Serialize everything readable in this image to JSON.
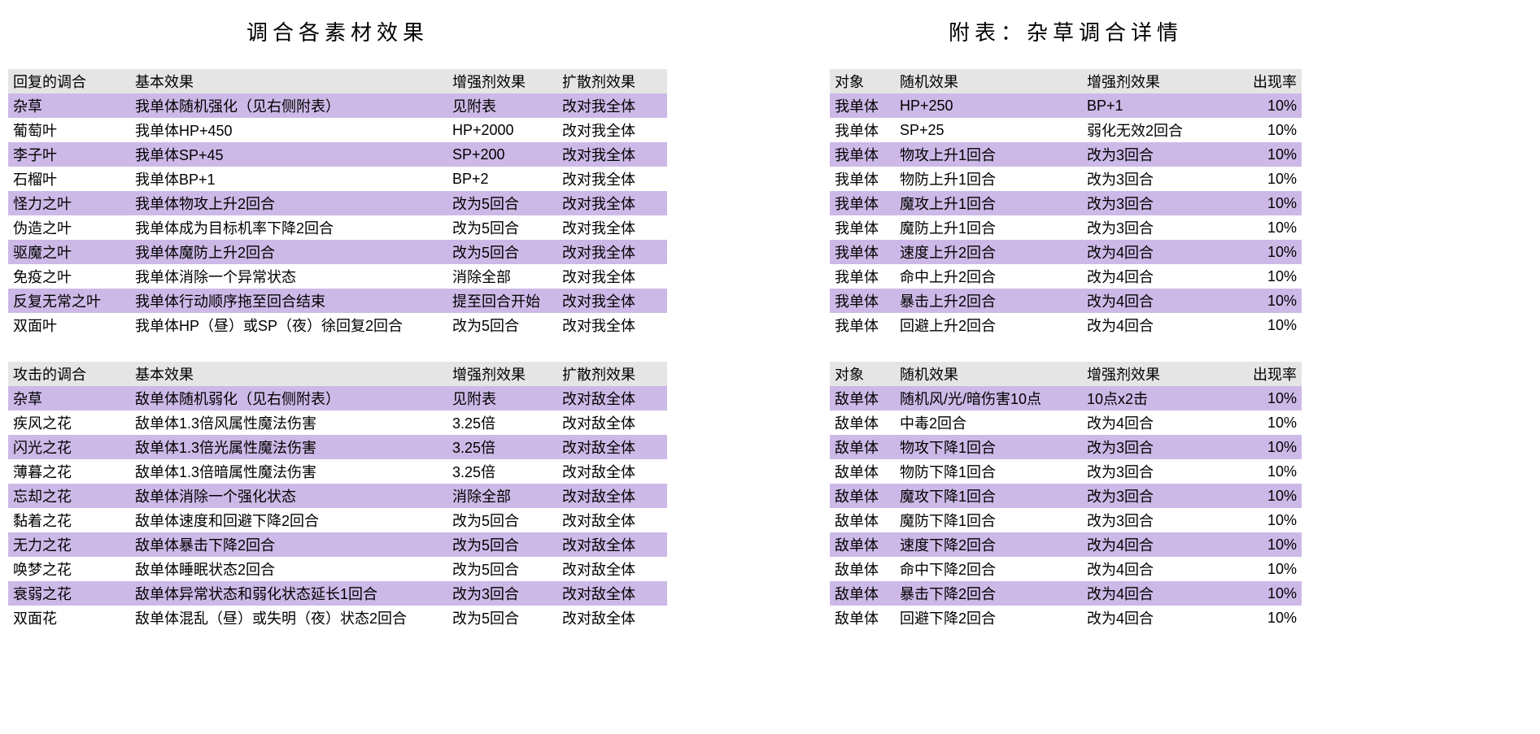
{
  "titles": {
    "left": "调合各素材效果",
    "right": "附表：杂草调合详情"
  },
  "colors": {
    "header_bg": "#e5e5e5",
    "stripe_bg": "#cdb9e7",
    "plain_bg": "#ffffff",
    "text": "#000000"
  },
  "left": {
    "headers": [
      "回复的调合",
      "基本效果",
      "增强剂效果",
      "扩散剂效果"
    ],
    "headers2": [
      "攻击的调合",
      "基本效果",
      "增强剂效果",
      "扩散剂效果"
    ],
    "recovery": [
      [
        "杂草",
        "我单体随机强化（见右侧附表）",
        "见附表",
        "改对我全体"
      ],
      [
        "葡萄叶",
        "我单体HP+450",
        "HP+2000",
        "改对我全体"
      ],
      [
        "李子叶",
        "我单体SP+45",
        "SP+200",
        "改对我全体"
      ],
      [
        "石榴叶",
        "我单体BP+1",
        "BP+2",
        "改对我全体"
      ],
      [
        "怪力之叶",
        "我单体物攻上升2回合",
        "改为5回合",
        "改对我全体"
      ],
      [
        "伪造之叶",
        "我单体成为目标机率下降2回合",
        "改为5回合",
        "改对我全体"
      ],
      [
        "驱魔之叶",
        "我单体魔防上升2回合",
        "改为5回合",
        "改对我全体"
      ],
      [
        "免疫之叶",
        "我单体消除一个异常状态",
        "消除全部",
        "改对我全体"
      ],
      [
        "反复无常之叶",
        "我单体行动顺序拖至回合结束",
        "提至回合开始",
        "改对我全体"
      ],
      [
        "双面叶",
        "我单体HP（昼）或SP（夜）徐回复2回合",
        "改为5回合",
        "改对我全体"
      ]
    ],
    "attack": [
      [
        "杂草",
        "敌单体随机弱化（见右侧附表）",
        "见附表",
        "改对敌全体"
      ],
      [
        "疾风之花",
        "敌单体1.3倍风属性魔法伤害",
        "3.25倍",
        "改对敌全体"
      ],
      [
        "闪光之花",
        "敌单体1.3倍光属性魔法伤害",
        "3.25倍",
        "改对敌全体"
      ],
      [
        "薄暮之花",
        "敌单体1.3倍暗属性魔法伤害",
        "3.25倍",
        "改对敌全体"
      ],
      [
        "忘却之花",
        "敌单体消除一个强化状态",
        "消除全部",
        "改对敌全体"
      ],
      [
        "黏着之花",
        "敌单体速度和回避下降2回合",
        "改为5回合",
        "改对敌全体"
      ],
      [
        "无力之花",
        "敌单体暴击下降2回合",
        "改为5回合",
        "改对敌全体"
      ],
      [
        "唤梦之花",
        "敌单体睡眠状态2回合",
        "改为5回合",
        "改对敌全体"
      ],
      [
        "衰弱之花",
        "敌单体异常状态和弱化状态延长1回合",
        "改为3回合",
        "改对敌全体"
      ],
      [
        "双面花",
        "敌单体混乱（昼）或失明（夜）状态2回合",
        "改为5回合",
        "改对敌全体"
      ]
    ]
  },
  "right": {
    "headers": [
      "对象",
      "随机效果",
      "增强剂效果",
      "出现率"
    ],
    "ally": [
      [
        "我单体",
        "HP+250",
        "BP+1",
        "10%"
      ],
      [
        "我单体",
        "SP+25",
        "弱化无效2回合",
        "10%"
      ],
      [
        "我单体",
        "物攻上升1回合",
        "改为3回合",
        "10%"
      ],
      [
        "我单体",
        "物防上升1回合",
        "改为3回合",
        "10%"
      ],
      [
        "我单体",
        "魔攻上升1回合",
        "改为3回合",
        "10%"
      ],
      [
        "我单体",
        "魔防上升1回合",
        "改为3回合",
        "10%"
      ],
      [
        "我单体",
        "速度上升2回合",
        "改为4回合",
        "10%"
      ],
      [
        "我单体",
        "命中上升2回合",
        "改为4回合",
        "10%"
      ],
      [
        "我单体",
        "暴击上升2回合",
        "改为4回合",
        "10%"
      ],
      [
        "我单体",
        "回避上升2回合",
        "改为4回合",
        "10%"
      ]
    ],
    "enemy": [
      [
        "敌单体",
        "随机风/光/暗伤害10点",
        "10点x2击",
        "10%"
      ],
      [
        "敌单体",
        "中毒2回合",
        "改为4回合",
        "10%"
      ],
      [
        "敌单体",
        "物攻下降1回合",
        "改为3回合",
        "10%"
      ],
      [
        "敌单体",
        "物防下降1回合",
        "改为3回合",
        "10%"
      ],
      [
        "敌单体",
        "魔攻下降1回合",
        "改为3回合",
        "10%"
      ],
      [
        "敌单体",
        "魔防下降1回合",
        "改为3回合",
        "10%"
      ],
      [
        "敌单体",
        "速度下降2回合",
        "改为4回合",
        "10%"
      ],
      [
        "敌单体",
        "命中下降2回合",
        "改为4回合",
        "10%"
      ],
      [
        "敌单体",
        "暴击下降2回合",
        "改为4回合",
        "10%"
      ],
      [
        "敌单体",
        "回避下降2回合",
        "改为4回合",
        "10%"
      ]
    ]
  }
}
